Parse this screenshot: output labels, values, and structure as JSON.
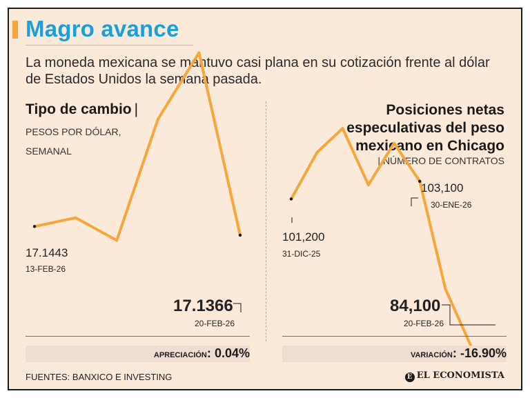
{
  "header": {
    "title": "Magro avance",
    "subtitle": "La moneda mexicana se mantuvo casi plana en su cotización frente al dólar de Estados Unidos la semana pasada."
  },
  "left_panel": {
    "heading": "Tipo de cambio",
    "heading_bar": "|",
    "sub_line1": "Pesos por dólar,",
    "sub_line2": "semanal",
    "start_value": "17.1443",
    "start_date": "13-FEB-26",
    "end_value": "17.1366",
    "end_date": "20-FEB-26",
    "status_label": "Apreciación",
    "status_colon": ":",
    "status_value": "0.04%"
  },
  "right_panel": {
    "heading_line1": "Posiciones netas",
    "heading_line2": "especulativas del peso",
    "heading_line3": "mexicano en Chicago",
    "sub": "| Número de contratos",
    "start_value": "101,200",
    "start_date": "31-DIC-25",
    "mid_value": "103,100",
    "mid_date": "30-ENE-26",
    "end_value": "84,100",
    "end_date": "20-FEB-26",
    "status_label": "Variación",
    "status_colon": ":",
    "status_value": "-16.90%"
  },
  "footer": {
    "sources": "Fuentes: Banxico e Investing",
    "brand_mark": "E",
    "brand": "EL ECONOMISTA"
  },
  "colors": {
    "line": "#f6a63a",
    "title": "#1a9fd6",
    "background": "#fbe9da"
  },
  "chart_data": [
    {
      "type": "line",
      "title": "Tipo de cambio",
      "ylabel": "Pesos por dólar, semanal",
      "x": [
        0,
        1,
        2,
        3,
        4,
        5
      ],
      "values": [
        17.1443,
        17.152,
        17.132,
        17.239,
        17.298,
        17.1366
      ],
      "ylim": [
        17.05,
        17.3
      ],
      "annotated": [
        {
          "index": 0,
          "value": "17.1443",
          "date": "13-FEB-26"
        },
        {
          "index": 5,
          "value": "17.1366",
          "date": "20-FEB-26"
        }
      ]
    },
    {
      "type": "line",
      "title": "Posiciones netas especulativas del peso mexicano en Chicago",
      "ylabel": "Número de contratos",
      "x": [
        0,
        1,
        2,
        3,
        4,
        5,
        6,
        7,
        8
      ],
      "values": [
        101200,
        106200,
        108800,
        102700,
        107200,
        103100,
        91500,
        85300,
        84100
      ],
      "ylim": [
        82000,
        112000
      ],
      "annotated": [
        {
          "index": 0,
          "value": "101,200",
          "date": "31-DIC-25"
        },
        {
          "index": 5,
          "value": "103,100",
          "date": "30-ENE-26"
        },
        {
          "index": 8,
          "value": "84,100",
          "date": "20-FEB-26"
        }
      ]
    }
  ]
}
